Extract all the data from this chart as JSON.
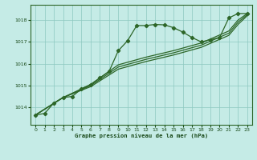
{
  "title": "Graphe pression niveau de la mer (hPa)",
  "bg_color": "#c5ebe6",
  "grid_color": "#8cc8c0",
  "line_color": "#2d6628",
  "text_color": "#1a4a1a",
  "xlim": [
    -0.5,
    23.5
  ],
  "ylim": [
    1013.2,
    1018.7
  ],
  "yticks": [
    1014,
    1015,
    1016,
    1017,
    1018
  ],
  "xticks": [
    0,
    1,
    2,
    3,
    4,
    5,
    6,
    7,
    8,
    9,
    10,
    11,
    12,
    13,
    14,
    15,
    16,
    17,
    18,
    19,
    20,
    21,
    22,
    23
  ],
  "main_curve": {
    "x": [
      0,
      1,
      2,
      3,
      4,
      5,
      6,
      7,
      8,
      9,
      10,
      11,
      12,
      13,
      14,
      15,
      16,
      17,
      18,
      19,
      20,
      21,
      22,
      23
    ],
    "y": [
      1013.65,
      1013.72,
      1014.2,
      1014.45,
      1014.5,
      1014.85,
      1015.05,
      1015.35,
      1015.65,
      1016.6,
      1017.05,
      1017.75,
      1017.75,
      1017.8,
      1017.78,
      1017.65,
      1017.45,
      1017.2,
      1017.0,
      1017.1,
      1017.2,
      1018.1,
      1018.3,
      1018.3
    ]
  },
  "diag1": {
    "x": [
      0,
      3,
      6,
      9,
      12,
      15,
      18,
      21,
      22,
      23
    ],
    "y": [
      1013.65,
      1014.45,
      1015.05,
      1015.95,
      1016.3,
      1016.6,
      1016.95,
      1017.5,
      1018.0,
      1018.3
    ]
  },
  "diag2": {
    "x": [
      0,
      3,
      6,
      9,
      12,
      15,
      18,
      21,
      22,
      23
    ],
    "y": [
      1013.65,
      1014.45,
      1015.0,
      1015.85,
      1016.2,
      1016.5,
      1016.85,
      1017.4,
      1017.9,
      1018.25
    ]
  },
  "diag3": {
    "x": [
      0,
      3,
      6,
      9,
      12,
      15,
      18,
      21,
      22,
      23
    ],
    "y": [
      1013.65,
      1014.45,
      1014.95,
      1015.75,
      1016.1,
      1016.4,
      1016.75,
      1017.3,
      1017.8,
      1018.2
    ]
  }
}
